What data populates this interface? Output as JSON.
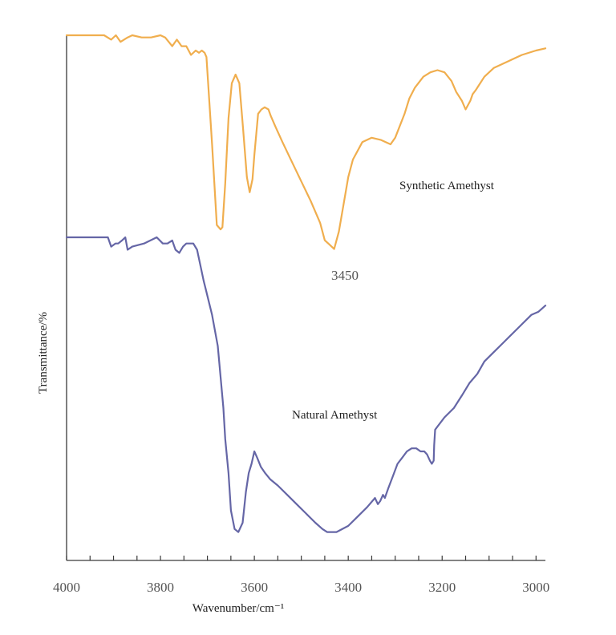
{
  "chart_data": {
    "type": "line",
    "title": "",
    "xlabel": "Wavenumber/cm⁻¹",
    "ylabel": "Transmittance/%",
    "xlim": [
      4000,
      2980
    ],
    "x_ticks": [
      4000,
      3800,
      3600,
      3400,
      3200,
      3000
    ],
    "x_tick_labels": [
      "4000",
      "3800",
      "3600",
      "3400",
      "3200",
      "3000"
    ],
    "x_minor_step": 50,
    "grid": false,
    "y_units": "relative transmittance (0 = strongest absorption, 100 = baseline)",
    "ylim": [
      0,
      100
    ],
    "annotations": [
      {
        "text": "3450",
        "series": "Synthetic Amethyst",
        "x": 3450
      }
    ],
    "series": [
      {
        "name": "Synthetic Amethyst",
        "label": "Synthetic Amethyst",
        "color": "#F0AE4E",
        "x": [
          4000,
          3920,
          3905,
          3895,
          3885,
          3870,
          3860,
          3840,
          3820,
          3800,
          3790,
          3775,
          3765,
          3755,
          3745,
          3735,
          3725,
          3718,
          3712,
          3706,
          3702,
          3690,
          3680,
          3672,
          3668,
          3662,
          3655,
          3648,
          3640,
          3632,
          3624,
          3616,
          3610,
          3604,
          3600,
          3592,
          3585,
          3578,
          3570,
          3565,
          3555,
          3540,
          3520,
          3500,
          3480,
          3460,
          3450,
          3440,
          3435,
          3430,
          3420,
          3412,
          3400,
          3390,
          3370,
          3350,
          3330,
          3310,
          3300,
          3280,
          3270,
          3258,
          3240,
          3225,
          3210,
          3195,
          3180,
          3170,
          3158,
          3150,
          3140,
          3135,
          3128,
          3110,
          3090,
          3060,
          3030,
          3000,
          2980
        ],
        "y": [
          100,
          100,
          98,
          100,
          97,
          99,
          100,
          99,
          99,
          100,
          99,
          95,
          98,
          95,
          95,
          91,
          93,
          92,
          93,
          92,
          90,
          50,
          13,
          11,
          12,
          32,
          62,
          78,
          82,
          78,
          57,
          35,
          28,
          34,
          45,
          64,
          66,
          67,
          66,
          63,
          58,
          51,
          42,
          33,
          24,
          14,
          6,
          4,
          3,
          2,
          10,
          20,
          35,
          43,
          51,
          53,
          52,
          50,
          53,
          64,
          71,
          76,
          81,
          83,
          84,
          83,
          79,
          74,
          70,
          66,
          70,
          73,
          75,
          81,
          85,
          88,
          91,
          93,
          94
        ]
      },
      {
        "name": "Natural Amethyst",
        "label": "Natural Amethyst",
        "color": "#6566A6",
        "x": [
          4000,
          3912,
          3905,
          3896,
          3890,
          3882,
          3875,
          3870,
          3860,
          3835,
          3808,
          3795,
          3785,
          3775,
          3768,
          3760,
          3752,
          3745,
          3738,
          3730,
          3722,
          3715,
          3708,
          3703,
          3690,
          3678,
          3672,
          3666,
          3662,
          3655,
          3650,
          3642,
          3634,
          3625,
          3618,
          3612,
          3606,
          3600,
          3594,
          3586,
          3577,
          3566,
          3550,
          3530,
          3510,
          3490,
          3470,
          3455,
          3445,
          3437,
          3425,
          3400,
          3380,
          3360,
          3343,
          3337,
          3332,
          3326,
          3322,
          3315,
          3305,
          3295,
          3285,
          3275,
          3265,
          3255,
          3246,
          3238,
          3232,
          3226,
          3222,
          3218,
          3217,
          3215,
          3210,
          3195,
          3175,
          3158,
          3142,
          3125,
          3110,
          3090,
          3070,
          3050,
          3030,
          3010,
          2995,
          2980
        ],
        "y": [
          100,
          100,
          97,
          98,
          98,
          99,
          100,
          96,
          97,
          98,
          100,
          98,
          98,
          99,
          96,
          95,
          97,
          98,
          98,
          98,
          96,
          91,
          86,
          83,
          75,
          65,
          55,
          45,
          35,
          24,
          12,
          6,
          5,
          8,
          18,
          24,
          27,
          31,
          29,
          26,
          24,
          22,
          20,
          17,
          14,
          11,
          8,
          6,
          5,
          5,
          5,
          7,
          10,
          13,
          16,
          14,
          15,
          17,
          16,
          19,
          23,
          27,
          29,
          31,
          32,
          32,
          31,
          31,
          30,
          28,
          27,
          28,
          33,
          38,
          39,
          42,
          45,
          49,
          53,
          56,
          60,
          63,
          66,
          69,
          72,
          75,
          76,
          78
        ]
      }
    ]
  }
}
